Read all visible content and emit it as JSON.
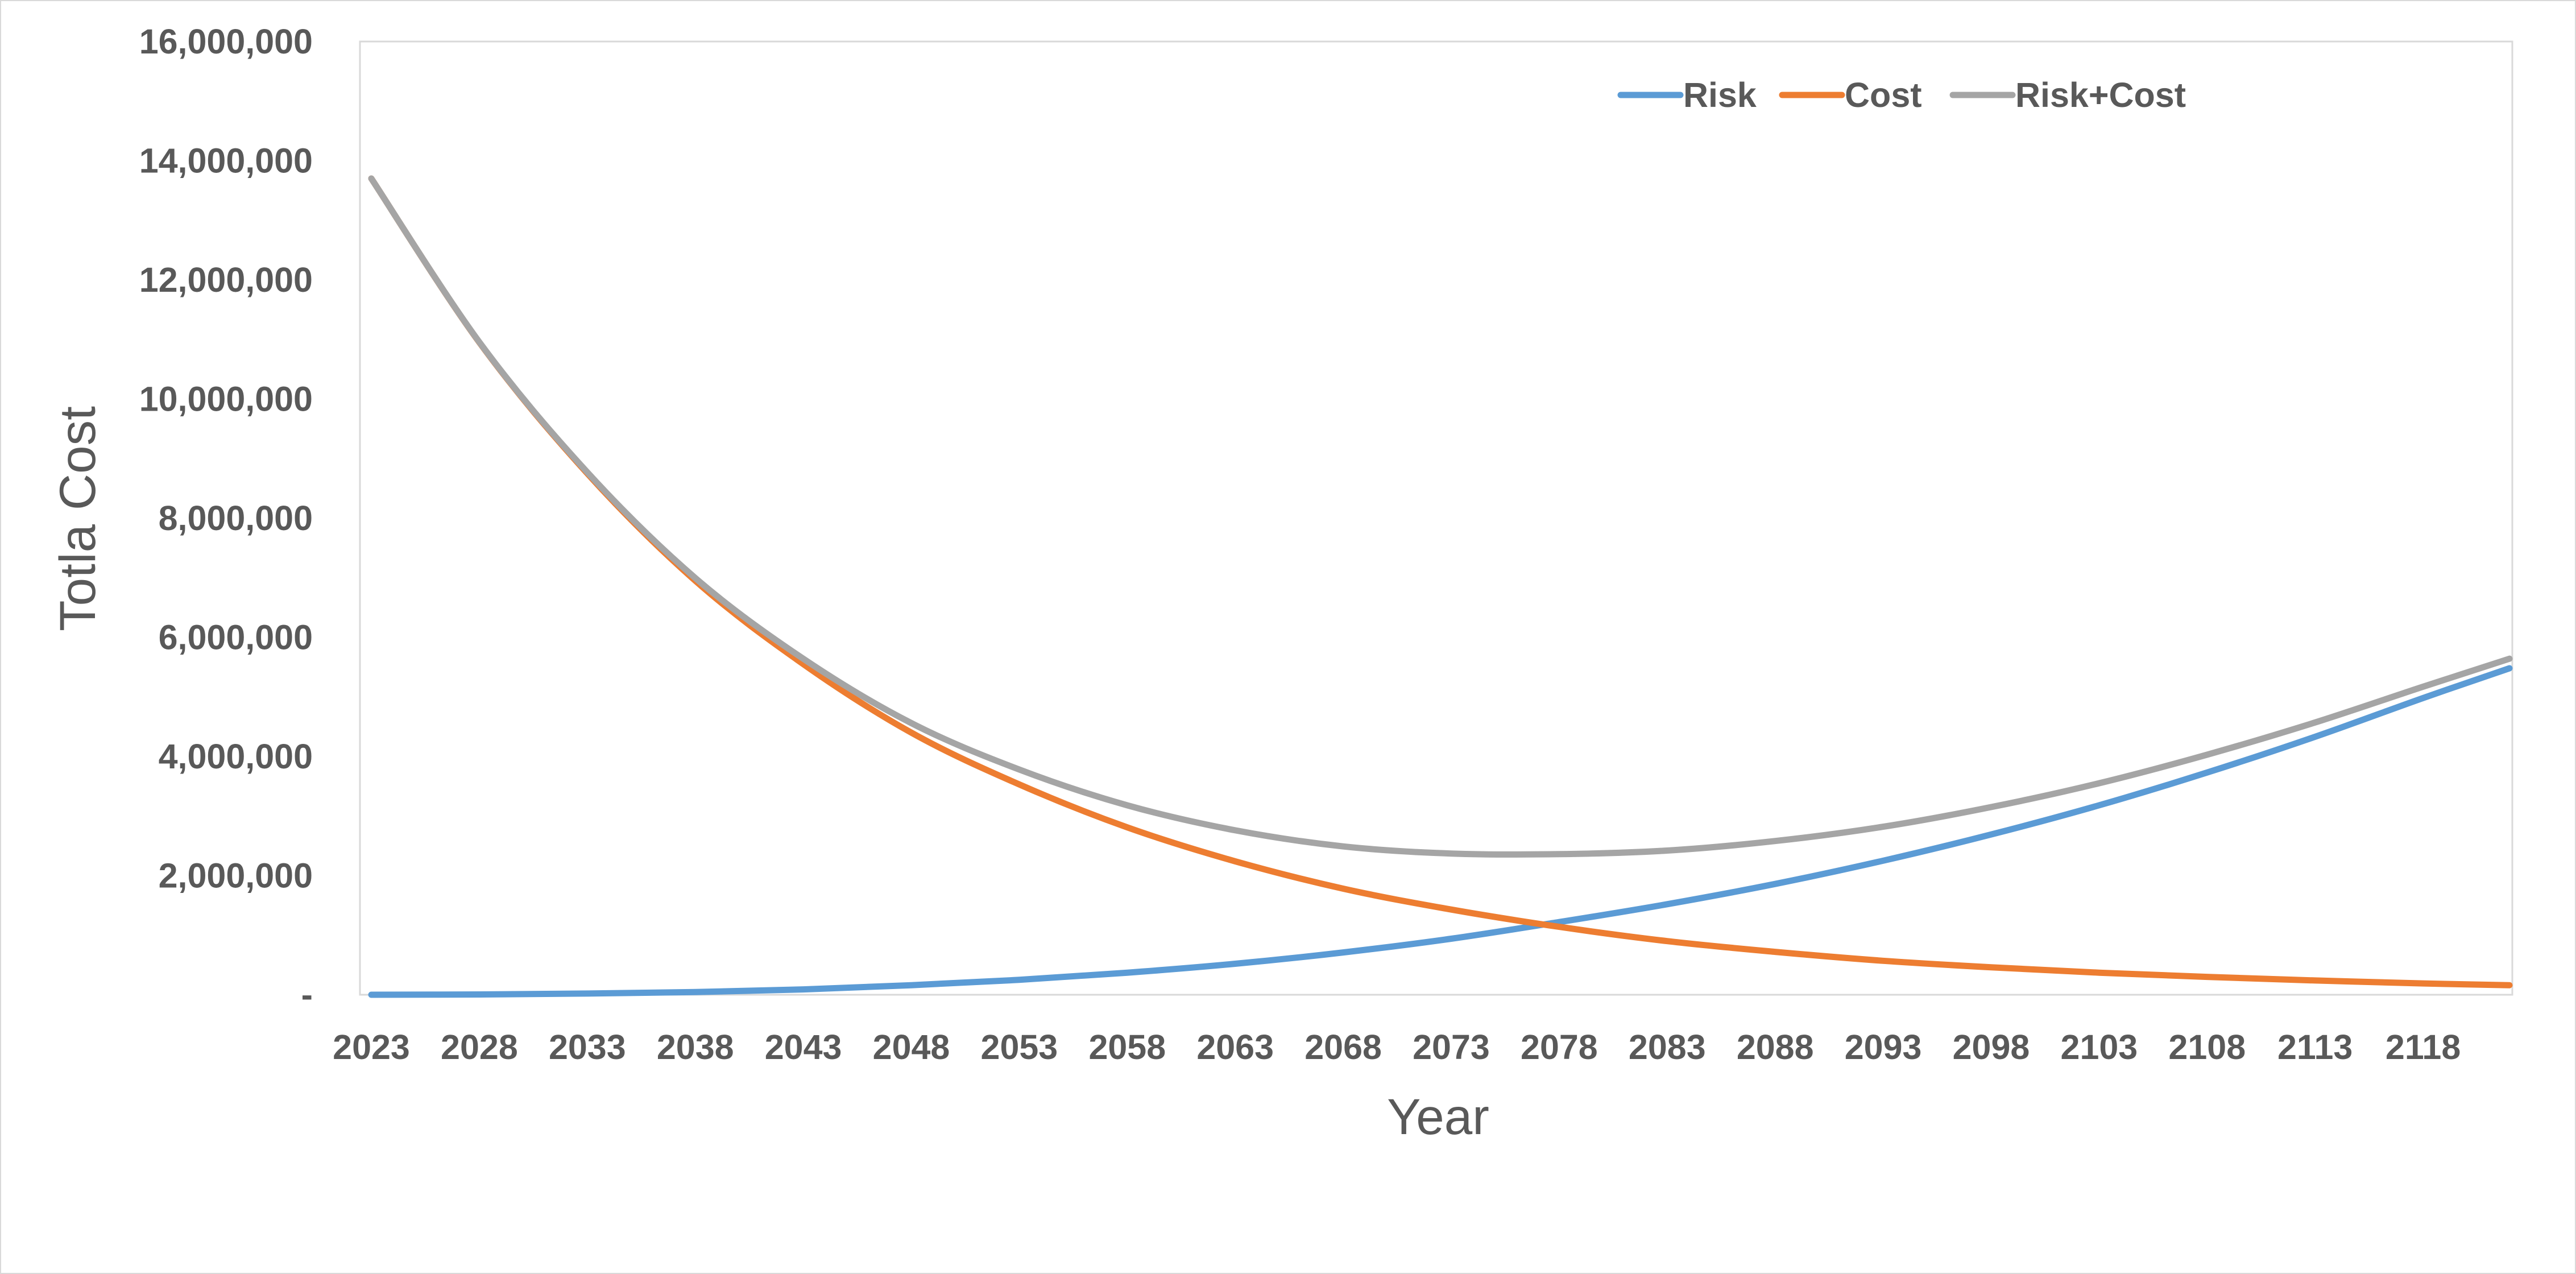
{
  "chart_data": {
    "type": "line",
    "title": "",
    "xlabel": "Year",
    "ylabel": "Totla Cost",
    "x_tick_labels": [
      "2023",
      "2028",
      "2033",
      "2038",
      "2043",
      "2048",
      "2053",
      "2058",
      "2063",
      "2068",
      "2073",
      "2078",
      "2083",
      "2088",
      "2093",
      "2098",
      "2103",
      "2108",
      "2113",
      "2118"
    ],
    "y_tick_labels": [
      "-",
      "2,000,000",
      "4,000,000",
      "6,000,000",
      "8,000,000",
      "10,000,000",
      "12,000,000",
      "14,000,000",
      "16,000,000"
    ],
    "y_tick_values": [
      0,
      2000000,
      4000000,
      6000000,
      8000000,
      10000000,
      12000000,
      14000000,
      16000000
    ],
    "xlim": [
      2023,
      2122
    ],
    "ylim": [
      0,
      16000000
    ],
    "grid": false,
    "legend_position": "top-right",
    "x": [
      2023,
      2028,
      2033,
      2038,
      2043,
      2048,
      2053,
      2058,
      2063,
      2068,
      2073,
      2078,
      2083,
      2088,
      2093,
      2098,
      2103,
      2108,
      2113,
      2118,
      2122
    ],
    "series": [
      {
        "name": "Risk",
        "color": "#5b9bd5",
        "values": [
          0,
          5000,
          20000,
          45000,
          90000,
          160000,
          250000,
          370000,
          520000,
          710000,
          940000,
          1220000,
          1520000,
          1860000,
          2250000,
          2690000,
          3180000,
          3730000,
          4330000,
          4980000,
          5480000
        ]
      },
      {
        "name": "Cost",
        "color": "#ed7d31",
        "values": [
          13700000,
          10950000,
          8750000,
          6950000,
          5550000,
          4400000,
          3530000,
          2810000,
          2240000,
          1780000,
          1430000,
          1140000,
          900000,
          720000,
          570000,
          460000,
          370000,
          300000,
          240000,
          190000,
          160000
        ]
      },
      {
        "name": "Risk+Cost",
        "color": "#a5a5a5",
        "values": [
          13700000,
          10955000,
          8770000,
          6995000,
          5640000,
          4560000,
          3780000,
          3180000,
          2760000,
          2490000,
          2370000,
          2360000,
          2420000,
          2580000,
          2820000,
          3150000,
          3550000,
          4030000,
          4570000,
          5170000,
          5640000
        ]
      }
    ]
  }
}
